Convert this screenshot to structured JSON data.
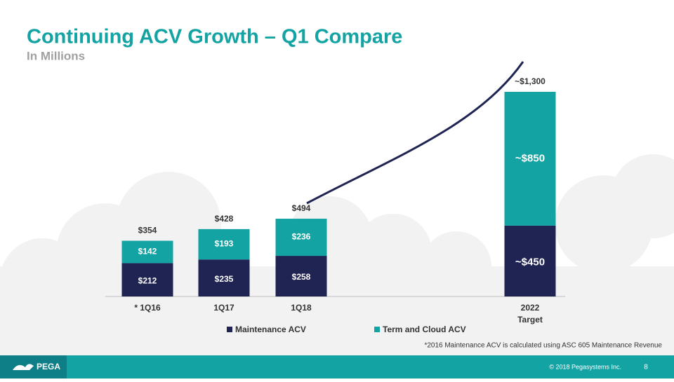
{
  "chart_data": {
    "type": "stacked-bar",
    "title": "Continuing ACV Growth – Q1 Compare",
    "subtitle": "In Millions",
    "categories": [
      "* 1Q16",
      "1Q17",
      "1Q18",
      "2022 Target"
    ],
    "series": [
      {
        "name": "Maintenance ACV",
        "color": "#1f2452",
        "values": [
          212,
          235,
          258,
          450
        ],
        "value_labels": [
          "$212",
          "$235",
          "$258",
          "~$450"
        ]
      },
      {
        "name": "Term and Cloud ACV",
        "color": "#13a3a3",
        "values": [
          142,
          193,
          236,
          850
        ],
        "value_labels": [
          "$142",
          "$193",
          "$236",
          "~$850"
        ]
      }
    ],
    "totals": {
      "values": [
        354,
        428,
        494,
        1300
      ],
      "value_labels": [
        "$354",
        "$428",
        "$494",
        "~$1,300"
      ]
    },
    "footnote": "*2016 Maintenance ACV is calculated using ASC 605 Maintenance Revenue"
  },
  "footer": {
    "logo": "PEGA",
    "copyright": "© 2018 Pegasystems Inc.",
    "page": "8"
  }
}
